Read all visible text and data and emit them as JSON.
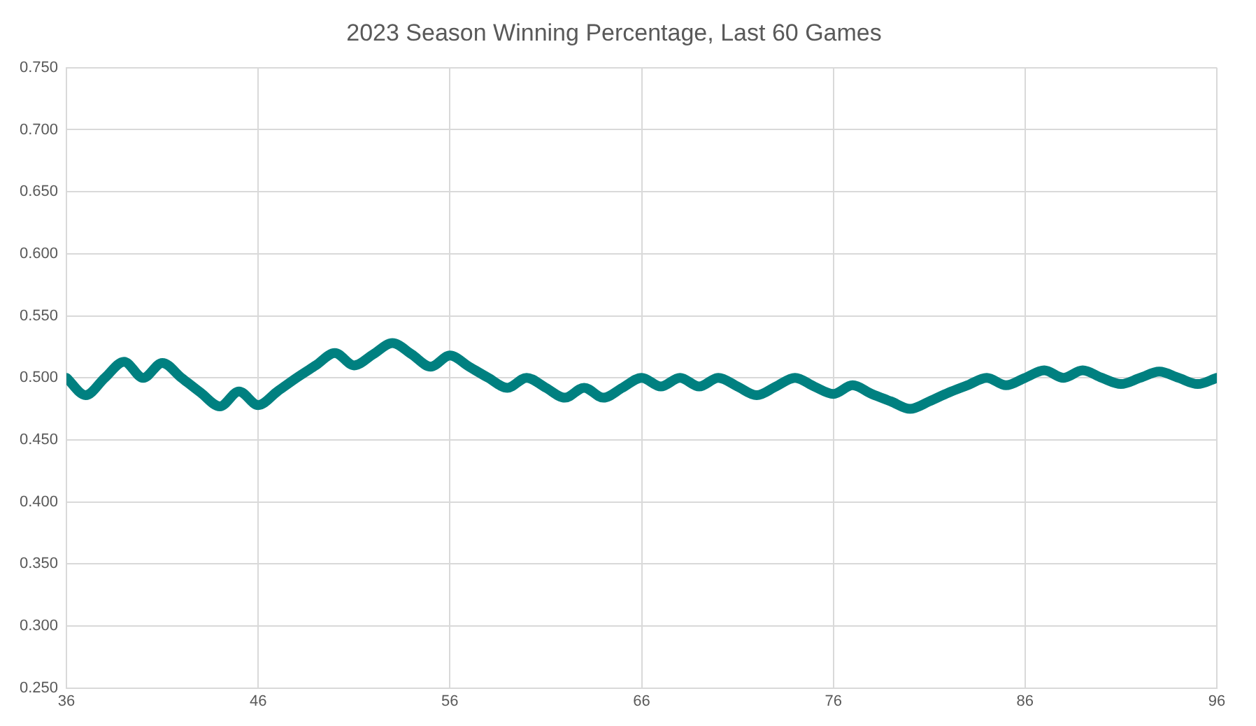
{
  "chart_data": {
    "type": "line",
    "title": "2023 Season Winning Percentage, Last 60 Games",
    "x": [
      36,
      37,
      38,
      39,
      40,
      41,
      42,
      43,
      44,
      45,
      46,
      47,
      48,
      49,
      50,
      51,
      52,
      53,
      54,
      55,
      56,
      57,
      58,
      59,
      60,
      61,
      62,
      63,
      64,
      65,
      66,
      67,
      68,
      69,
      70,
      71,
      72,
      73,
      74,
      75,
      76,
      77,
      78,
      79,
      80,
      81,
      82,
      83,
      84,
      85,
      86,
      87,
      88,
      89,
      90,
      91,
      92,
      93,
      94,
      95,
      96
    ],
    "series": [
      {
        "color": "#008080",
        "values": [
          0.5,
          0.486,
          0.5,
          0.513,
          0.5,
          0.512,
          0.5,
          0.488,
          0.477,
          0.489,
          0.478,
          0.489,
          0.5,
          0.51,
          0.52,
          0.51,
          0.519,
          0.528,
          0.519,
          0.509,
          0.518,
          0.509,
          0.5,
          0.492,
          0.5,
          0.492,
          0.484,
          0.492,
          0.484,
          0.492,
          0.5,
          0.493,
          0.5,
          0.493,
          0.5,
          0.493,
          0.486,
          0.493,
          0.5,
          0.493,
          0.487,
          0.494,
          0.487,
          0.481,
          0.475,
          0.481,
          0.488,
          0.494,
          0.5,
          0.494,
          0.5,
          0.506,
          0.5,
          0.506,
          0.5,
          0.495,
          0.5,
          0.505,
          0.5,
          0.495,
          0.5
        ]
      }
    ],
    "xlim": [
      36,
      96
    ],
    "xticks": [
      36,
      46,
      56,
      66,
      76,
      86,
      96
    ],
    "ylim": [
      0.25,
      0.75
    ],
    "yticks": [
      {
        "value": 0.25,
        "label": "0.250"
      },
      {
        "value": 0.3,
        "label": "0.300"
      },
      {
        "value": 0.35,
        "label": "0.350"
      },
      {
        "value": 0.4,
        "label": "0.400"
      },
      {
        "value": 0.45,
        "label": "0.450"
      },
      {
        "value": 0.5,
        "label": "0.500"
      },
      {
        "value": 0.55,
        "label": "0.550"
      },
      {
        "value": 0.6,
        "label": "0.600"
      },
      {
        "value": 0.65,
        "label": "0.650"
      },
      {
        "value": 0.7,
        "label": "0.700"
      },
      {
        "value": 0.75,
        "label": "0.750"
      }
    ],
    "grid": true,
    "legend": false,
    "marker": "none",
    "line_style": "solid"
  }
}
